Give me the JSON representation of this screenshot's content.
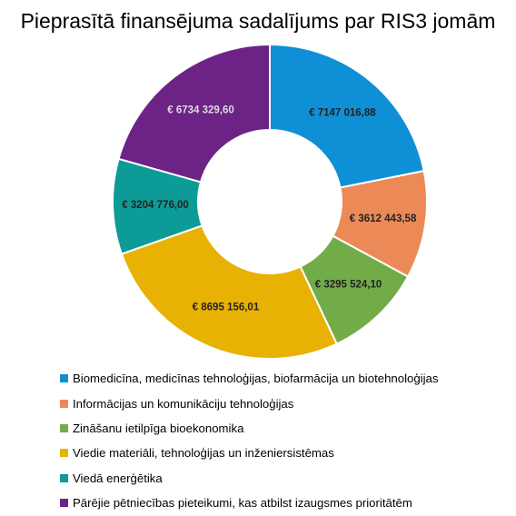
{
  "chart_data": {
    "type": "pie",
    "title": "Pieprasītā finansējuma sadalījums par RIS3 jomām",
    "donut": true,
    "legend_position": "bottom",
    "categories": [
      "Biomedicīna, medicīnas tehnoloģijas, biofarmācija un biotehnoloģijas",
      "Informācijas un komunikāciju tehnoloģijas",
      "Zināšanu ietilpīga bioekonomika",
      "Viedie materiāli, tehnoloģijas un inženiersistēmas",
      "Viedā enerģētika",
      "Pārējie pētniecības pieteikumi, kas atbilst izaugsmes prioritātēm"
    ],
    "values": [
      7147016.88,
      3612443.58,
      3295524.1,
      8695156.01,
      3204776.0,
      6734329.6
    ],
    "data_labels": [
      "€ 7147 016,88",
      "€ 3612 443,58",
      "€ 3295 524,10",
      "€ 8695 156,01",
      "€ 3204 776,00",
      "€ 6734 329,60"
    ],
    "colors": [
      "#0F8FD6",
      "#EC8A57",
      "#72AC48",
      "#E8B204",
      "#0D9B97",
      "#6D2286"
    ],
    "label_colors": [
      "#222222",
      "#222222",
      "#222222",
      "#222222",
      "#222222",
      "#DDDDDD"
    ]
  }
}
